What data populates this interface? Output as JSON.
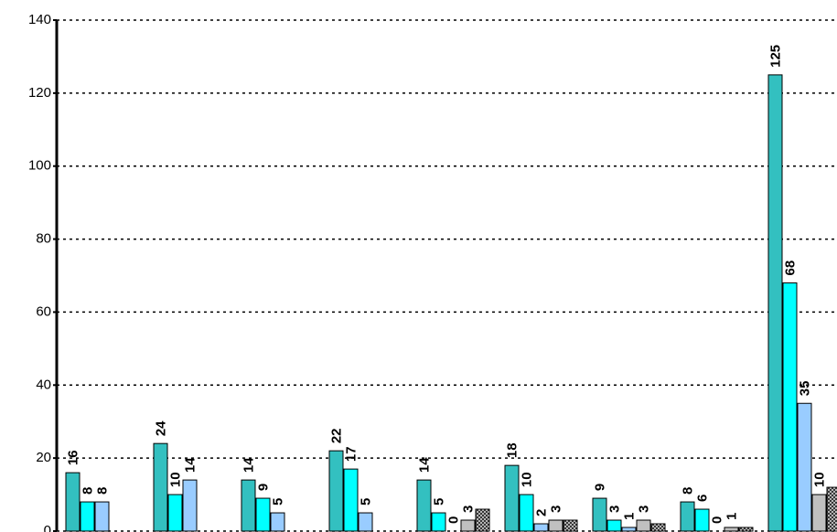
{
  "chart_data": {
    "type": "bar",
    "categories": [
      null,
      null,
      null,
      null,
      null,
      null,
      null,
      null,
      null
    ],
    "series": [
      {
        "color": "#33c0c0",
        "values": [
          16,
          24,
          14,
          22,
          14,
          18,
          9,
          8,
          125
        ]
      },
      {
        "color": "#00ffff",
        "values": [
          8,
          10,
          9,
          17,
          5,
          10,
          3,
          6,
          68
        ]
      },
      {
        "color": "#99ccff",
        "values": [
          8,
          14,
          5,
          5,
          0,
          2,
          1,
          0,
          35
        ]
      },
      {
        "color": "#c0c0c0",
        "values": [
          null,
          null,
          null,
          null,
          3,
          3,
          3,
          1,
          10
        ]
      },
      {
        "color": "hatch",
        "values": [
          null,
          null,
          null,
          null,
          6,
          3,
          2,
          1,
          12
        ],
        "show_labels": false
      }
    ],
    "ylim": [
      0,
      140
    ],
    "yticks": [
      0,
      20,
      40,
      60,
      80,
      100,
      120,
      140
    ],
    "grid": true
  }
}
